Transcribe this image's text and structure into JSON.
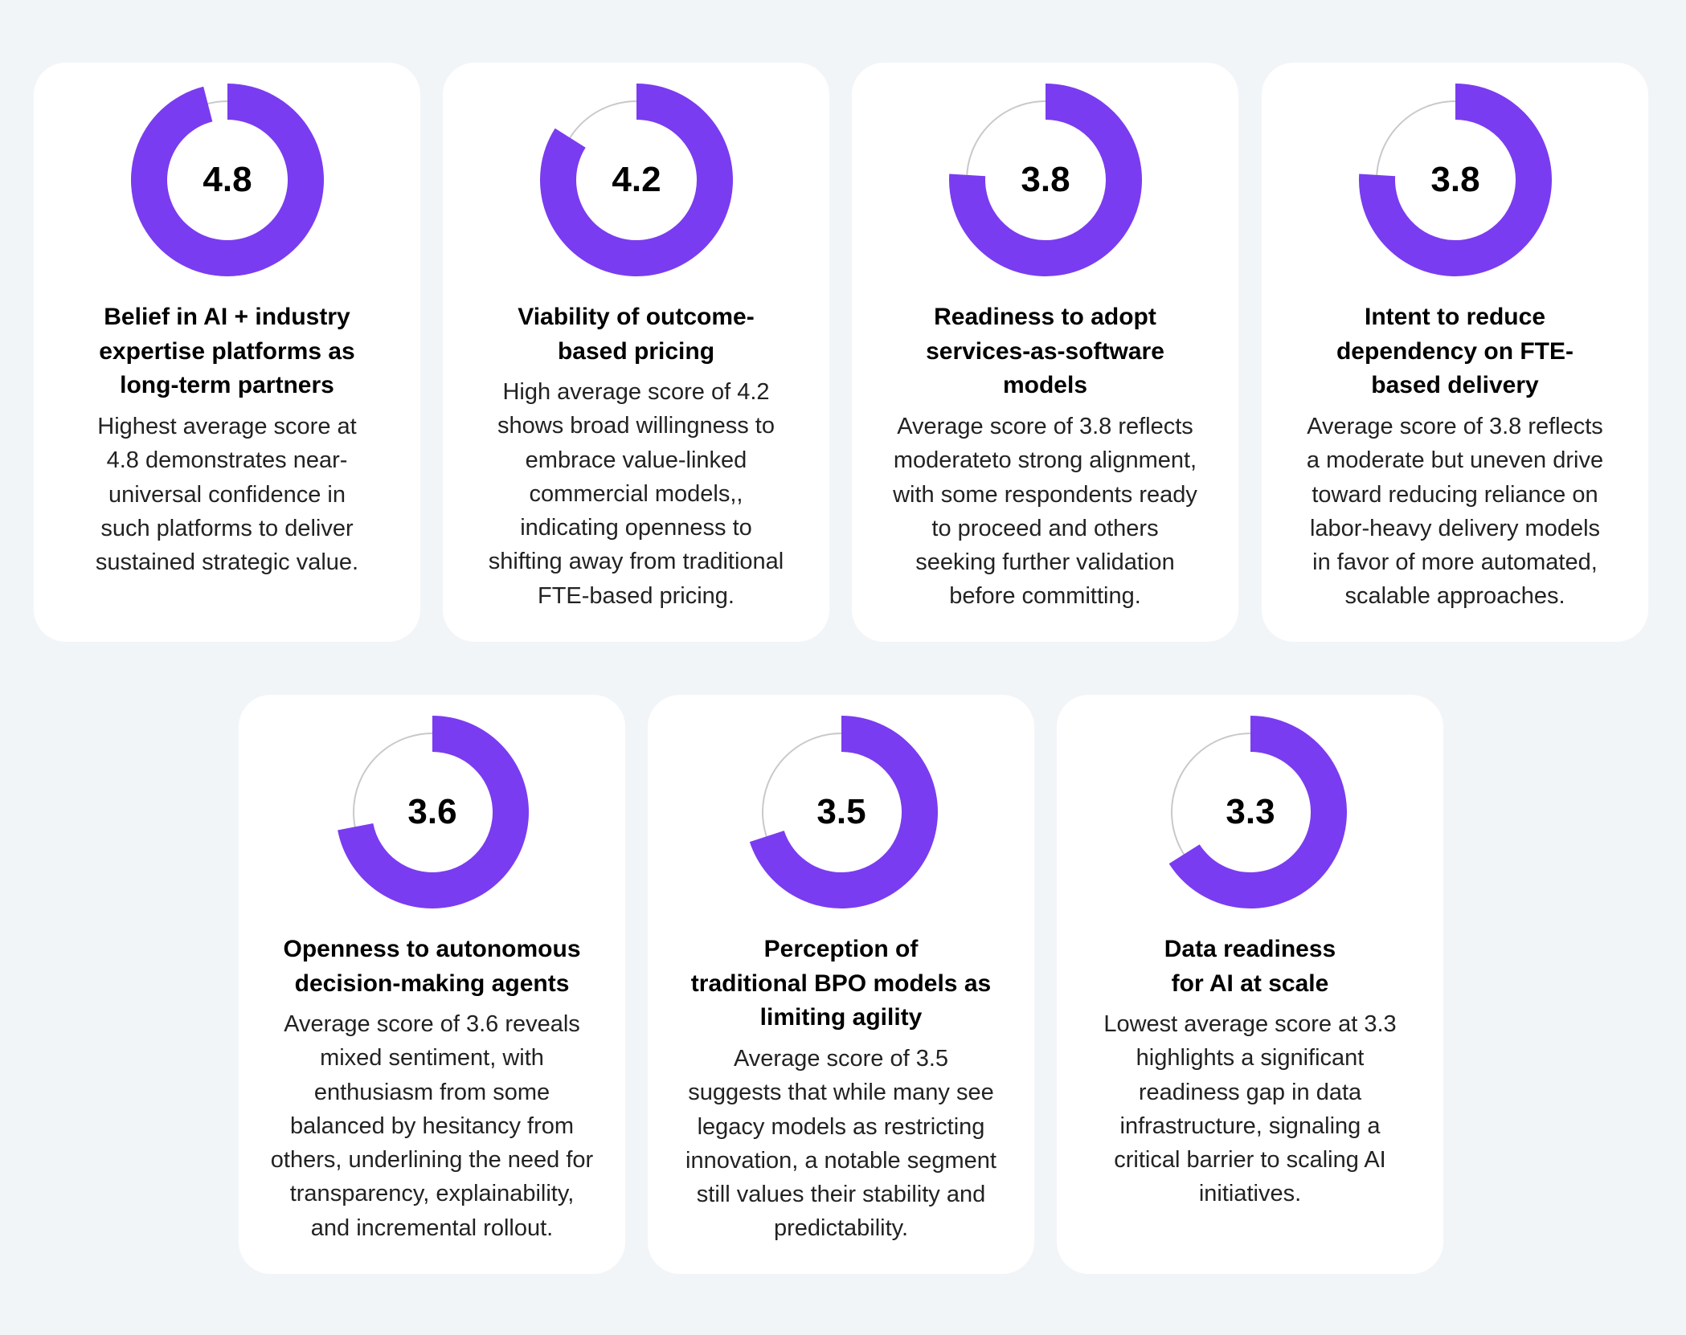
{
  "colors": {
    "page_background": "#f2f5f8",
    "card_background": "#ffffff",
    "donut_fill": "#7a3cf0",
    "donut_track": "#c9c9cc"
  },
  "chart_data": {
    "type": "donut",
    "scale_max": 5,
    "cards": [
      {
        "value": 4.8,
        "score_label": "4.8",
        "title_lines": [
          "Belief in AI + industry",
          "expertise platforms as",
          "long-term partners"
        ],
        "description_lines": [
          "Highest average score at",
          "4.8 demonstrates near-",
          "universal confidence in",
          "such platforms to deliver",
          "sustained strategic value."
        ]
      },
      {
        "value": 4.2,
        "score_label": "4.2",
        "title_lines": [
          "Viability of outcome-",
          "based pricing"
        ],
        "description_lines": [
          "High average score of 4.2",
          "shows broad willingness to",
          "embrace value-linked",
          "commercial models,,",
          "indicating openness to",
          "shifting away from traditional",
          "FTE-based pricing."
        ]
      },
      {
        "value": 3.8,
        "score_label": "3.8",
        "title_lines": [
          "Readiness to adopt",
          "services-as-software",
          "models"
        ],
        "description_lines": [
          "Average score of 3.8 reflects",
          "moderateto strong alignment,",
          "with some respondents ready",
          "to proceed and others",
          "seeking further validation",
          "before committing."
        ]
      },
      {
        "value": 3.8,
        "score_label": "3.8",
        "title_lines": [
          "Intent to reduce",
          "dependency on FTE-",
          "based delivery"
        ],
        "description_lines": [
          "Average score of 3.8 reflects",
          "a moderate but uneven drive",
          "toward reducing reliance on",
          "labor-heavy delivery models",
          "in favor of more automated,",
          "scalable approaches."
        ]
      },
      {
        "value": 3.6,
        "score_label": "3.6",
        "title_lines": [
          "Openness to autonomous",
          "decision-making agents"
        ],
        "description_lines": [
          "Average score of 3.6 reveals",
          "mixed sentiment, with",
          "enthusiasm from some",
          "balanced by hesitancy from",
          "others, underlining the need for",
          "transparency, explainability,",
          "and incremental rollout."
        ]
      },
      {
        "value": 3.5,
        "score_label": "3.5",
        "title_lines": [
          "Perception of",
          "traditional BPO models as",
          "limiting agility"
        ],
        "description_lines": [
          "Average score of 3.5",
          "suggests that while many see",
          "legacy models as restricting",
          "innovation, a notable segment",
          "still values their stability and",
          "predictability."
        ]
      },
      {
        "value": 3.3,
        "score_label": "3.3",
        "title_lines": [
          "Data readiness",
          "for AI at scale"
        ],
        "description_lines": [
          "Lowest average score at 3.3",
          "highlights a significant",
          "readiness gap in data",
          "infrastructure, signaling a",
          "critical barrier to scaling AI",
          "initiatives."
        ]
      }
    ]
  }
}
